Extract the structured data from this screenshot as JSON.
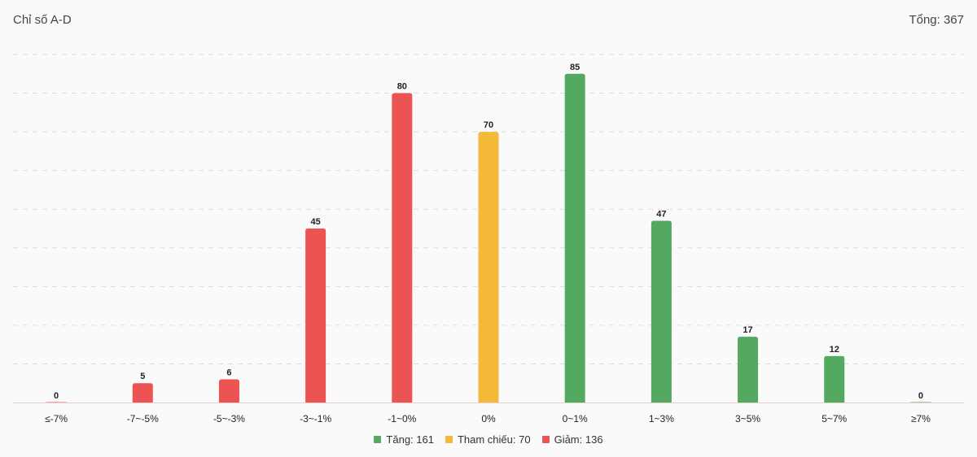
{
  "header": {
    "title": "Chỉ số A-D",
    "total": "Tổng: 367"
  },
  "colors": {
    "up": "#52a95f",
    "reference": "#f4b936",
    "down": "#ec5353",
    "grid": "#dddddd",
    "axis": "#e6cccc"
  },
  "legend": [
    {
      "label": "Tăng: 161",
      "color": "#52a95f"
    },
    {
      "label": "Tham chiếu: 70",
      "color": "#f4b936"
    },
    {
      "label": "Giảm: 136",
      "color": "#ec5353"
    }
  ],
  "chart_data": {
    "type": "bar",
    "categories": [
      "≤-7%",
      "-7~-5%",
      "-5~-3%",
      "-3~-1%",
      "-1~0%",
      "0%",
      "0~1%",
      "1~3%",
      "3~5%",
      "5~7%",
      "≥7%"
    ],
    "values": [
      0,
      5,
      6,
      45,
      80,
      70,
      85,
      47,
      17,
      12,
      0
    ],
    "bar_colors": [
      "#ec5353",
      "#ec5353",
      "#ec5353",
      "#ec5353",
      "#ec5353",
      "#f4b936",
      "#52a95f",
      "#52a95f",
      "#52a95f",
      "#52a95f",
      "#52a95f"
    ],
    "ylim": [
      0,
      90
    ],
    "grid": true,
    "legend_position": "bottom",
    "data_labels": true
  }
}
